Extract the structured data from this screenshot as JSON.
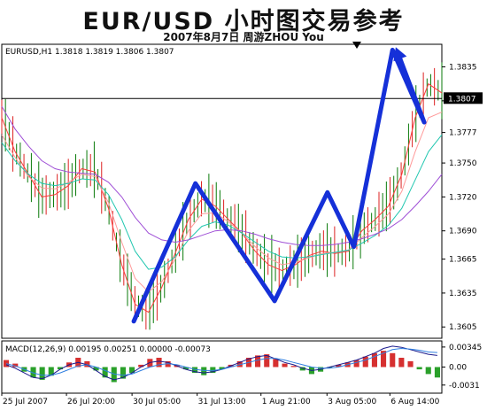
{
  "header": {
    "title": "EUR/USD 小时图交易参考",
    "subtitle": "2007年8月7日     周游ZHOU You"
  },
  "chart_data": [
    {
      "type": "line",
      "symbol_label": "EURUSD,H1  1.3818 1.3819 1.3806 1.3807",
      "ylim": [
        1.3595,
        1.3855
      ],
      "yticks": [
        "1.3835",
        "1.3805",
        "1.3777",
        "1.3750",
        "1.3720",
        "1.3690",
        "1.3665",
        "1.3635",
        "1.3605"
      ],
      "ytick_values": [
        1.3835,
        1.3805,
        1.3777,
        1.375,
        1.372,
        1.369,
        1.3665,
        1.3635,
        1.3605
      ],
      "current_price": "1.3807",
      "current_price_value": 1.3807,
      "xticks": [
        "25 Jul 2007",
        "26 Jul 20:00",
        "30 Jul 05:00",
        "31 Jul 13:00",
        "1 Aug 21:00",
        "3 Aug 05:00",
        "6 Aug 14:00"
      ],
      "xtick_positions": [
        0.0,
        0.147,
        0.296,
        0.444,
        0.589,
        0.739,
        0.882
      ],
      "wave_path": [
        [
          0.3,
          1.361
        ],
        [
          0.44,
          1.3732
        ],
        [
          0.62,
          1.3628
        ],
        [
          0.74,
          1.3724
        ],
        [
          0.8,
          1.3676
        ],
        [
          0.888,
          1.385
        ],
        [
          0.96,
          1.3786
        ],
        [
          1.04,
          1.3848
        ]
      ],
      "series": [
        {
          "color": "#ff3b3b",
          "values": [
            1.379,
            1.376,
            1.374,
            1.372,
            1.3722,
            1.373,
            1.3745,
            1.3742,
            1.371,
            1.366,
            1.3625,
            1.3618,
            1.364,
            1.367,
            1.37,
            1.3718,
            1.3712,
            1.37,
            1.3688,
            1.3672,
            1.366,
            1.3655,
            1.366,
            1.3668,
            1.3672,
            1.367,
            1.3672,
            1.369,
            1.37,
            1.3712,
            1.374,
            1.379,
            1.382,
            1.3812
          ]
        },
        {
          "color": "#ff9a9a",
          "values": [
            1.3775,
            1.3755,
            1.3738,
            1.3728,
            1.3727,
            1.3733,
            1.374,
            1.3738,
            1.3715,
            1.368,
            1.3648,
            1.3636,
            1.3645,
            1.3665,
            1.369,
            1.3705,
            1.3706,
            1.3698,
            1.3688,
            1.3676,
            1.3666,
            1.366,
            1.3662,
            1.3666,
            1.367,
            1.3671,
            1.3673,
            1.3684,
            1.3694,
            1.3705,
            1.3725,
            1.376,
            1.379,
            1.3795
          ]
        },
        {
          "color": "#22c7b0",
          "values": [
            1.3768,
            1.3752,
            1.374,
            1.3732,
            1.373,
            1.3732,
            1.3736,
            1.3735,
            1.3722,
            1.37,
            1.3672,
            1.3656,
            1.3658,
            1.3667,
            1.3682,
            1.3694,
            1.3698,
            1.3695,
            1.3688,
            1.368,
            1.3672,
            1.3667,
            1.3666,
            1.3667,
            1.3669,
            1.3671,
            1.3673,
            1.3679,
            1.3686,
            1.3695,
            1.371,
            1.3735,
            1.376,
            1.3775
          ]
        },
        {
          "color": "#9f4fd6",
          "values": [
            1.38,
            1.378,
            1.3765,
            1.3752,
            1.3745,
            1.3742,
            1.3741,
            1.374,
            1.3733,
            1.372,
            1.3702,
            1.3688,
            1.3682,
            1.368,
            1.3682,
            1.3686,
            1.369,
            1.3691,
            1.369,
            1.3687,
            1.3683,
            1.368,
            1.3678,
            1.3677,
            1.3677,
            1.3678,
            1.368,
            1.3683,
            1.3687,
            1.3692,
            1.37,
            1.3712,
            1.3725,
            1.374
          ]
        }
      ]
    },
    {
      "type": "bar",
      "label": "MACD(12,26,9) 0.00195 0.00251 0.00000 -0.00073",
      "ylim": [
        -0.0045,
        0.0045
      ],
      "yticks": [
        "0.00345",
        "0.00",
        "-0.0031"
      ],
      "ytick_values": [
        0.00345,
        0.0,
        -0.0031
      ],
      "values": [
        0.0012,
        0.0006,
        -0.0008,
        -0.0018,
        -0.0022,
        -0.0015,
        -0.0004,
        0.0008,
        0.0016,
        0.001,
        -0.0006,
        -0.0018,
        -0.0026,
        -0.002,
        -0.001,
        0.0004,
        0.0014,
        0.0016,
        0.001,
        0.0004,
        -0.0004,
        -0.001,
        -0.0014,
        -0.001,
        -0.0004,
        0.0004,
        0.001,
        0.0016,
        0.002,
        0.0022,
        0.0014,
        0.0006,
        0.0002,
        -0.0006,
        -0.0012,
        -0.0008,
        -0.0002,
        0.0004,
        0.0008,
        0.0012,
        0.0018,
        0.0024,
        0.0028,
        0.0024,
        0.0016,
        0.001,
        -0.0004,
        -0.0012,
        -0.0018
      ],
      "series": [
        {
          "color": "#1a1a8c",
          "values": [
            0.0004,
            -0.0002,
            -0.001,
            -0.0018,
            -0.002,
            -0.0014,
            -0.0004,
            0.0004,
            0.0008,
            0.0004,
            -0.0006,
            -0.0016,
            -0.0022,
            -0.0018,
            -0.001,
            0.0,
            0.0008,
            0.001,
            0.0008,
            0.0002,
            -0.0004,
            -0.0008,
            -0.001,
            -0.0008,
            -0.0004,
            0.0002,
            0.0008,
            0.0014,
            0.0018,
            0.002,
            0.0014,
            0.0008,
            0.0004,
            -0.0002,
            -0.0006,
            -0.0004,
            0.0,
            0.0004,
            0.0008,
            0.0012,
            0.0018,
            0.0024,
            0.0032,
            0.0036,
            0.0034,
            0.003,
            0.0026,
            0.0022,
            0.002
          ]
        },
        {
          "color": "#2f7fe0",
          "values": [
            0.0006,
            0.0002,
            -0.0004,
            -0.001,
            -0.0014,
            -0.0014,
            -0.001,
            -0.0004,
            0.0002,
            0.0004,
            0.0,
            -0.0006,
            -0.0012,
            -0.0014,
            -0.0012,
            -0.0006,
            0.0,
            0.0004,
            0.0006,
            0.0004,
            0.0,
            -0.0004,
            -0.0006,
            -0.0006,
            -0.0004,
            0.0,
            0.0004,
            0.0008,
            0.0012,
            0.0015,
            0.0015,
            0.0012,
            0.0008,
            0.0004,
            0.0,
            -0.0002,
            -0.0002,
            0.0,
            0.0004,
            0.0008,
            0.0012,
            0.0018,
            0.0024,
            0.003,
            0.0032,
            0.0031,
            0.0029,
            0.0026,
            0.0025
          ]
        }
      ]
    }
  ]
}
